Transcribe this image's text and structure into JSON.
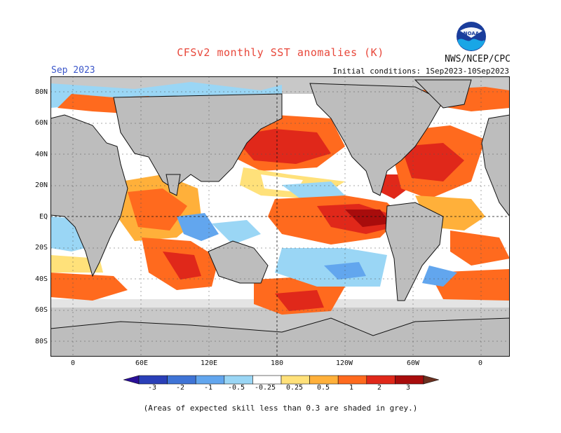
{
  "title": "CFSv2 monthly SST anomalies (K)",
  "agency": "NWS/NCEP/CPC",
  "logo_text": "NOAA",
  "month_label": "Sep 2023",
  "initial_conditions": "Initial conditions: 1Sep2023-10Sep2023",
  "footnote": "(Areas of expected skill less than 0.3 are shaded in grey.)",
  "colors": {
    "land": "#bdbdbd",
    "skill_mask": "#c8c8c8",
    "title": "#e8473a",
    "month": "#3b56c9"
  },
  "lat_labels": [
    "80N",
    "60N",
    "40N",
    "20N",
    "EQ",
    "20S",
    "40S",
    "60S",
    "80S"
  ],
  "lon_labels": [
    "0",
    "60E",
    "120E",
    "180",
    "120W",
    "60W",
    "0"
  ],
  "colorbar": {
    "labels": [
      "-3",
      "-2",
      "-1",
      "-0.5",
      "-0.25",
      "0.25",
      "0.5",
      "1",
      "2",
      "3"
    ],
    "colors": [
      "#2a0f98",
      "#2a3fb8",
      "#3f74d6",
      "#62a6ee",
      "#9ad6f5",
      "#ffffff",
      "#ffe17a",
      "#ffb03a",
      "#ff6a1e",
      "#e0281a",
      "#a80c0c",
      "#6a3020"
    ]
  }
}
